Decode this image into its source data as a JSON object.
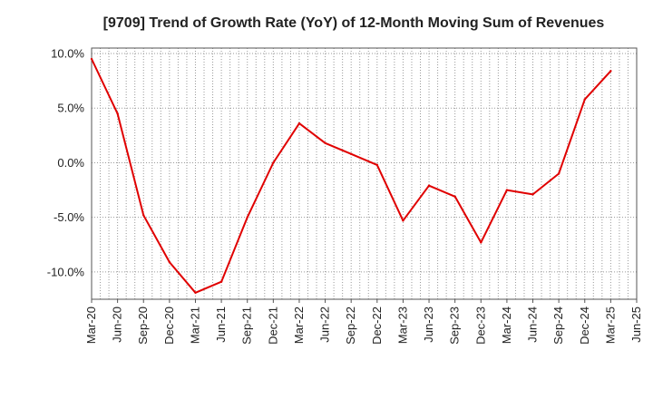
{
  "chart_data": {
    "type": "line",
    "title": "[9709]  Trend of Growth Rate (YoY) of 12-Month Moving Sum of Revenues",
    "xlabel": "",
    "ylabel": "",
    "x_ticks": [
      "Mar-20",
      "Jun-20",
      "Sep-20",
      "Dec-20",
      "Mar-21",
      "Jun-21",
      "Sep-21",
      "Dec-21",
      "Mar-22",
      "Jun-22",
      "Sep-22",
      "Dec-22",
      "Mar-23",
      "Jun-23",
      "Sep-23",
      "Dec-23",
      "Mar-24",
      "Jun-24",
      "Sep-24",
      "Dec-24",
      "Mar-25",
      "Jun-25"
    ],
    "y_ticks": [
      "10.0%",
      "5.0%",
      "0.0%",
      "-5.0%",
      "-10.0%"
    ],
    "y_tick_values": [
      10,
      5,
      0,
      -5,
      -10
    ],
    "ylim": [
      -12.5,
      10.5
    ],
    "grid": true,
    "series": [
      {
        "color": "#e00000",
        "x": [
          "Mar-20",
          "Jun-20",
          "Sep-20",
          "Dec-20",
          "Mar-21",
          "Jun-21",
          "Sep-21",
          "Dec-21",
          "Mar-22",
          "Jun-22",
          "Sep-22",
          "Dec-22",
          "Mar-23",
          "Jun-23",
          "Sep-23",
          "Dec-23",
          "Mar-24",
          "Jun-24",
          "Sep-24",
          "Dec-24",
          "Mar-25"
        ],
        "values": [
          9.5,
          4.5,
          -4.8,
          -9.1,
          -11.9,
          -10.9,
          -5.0,
          0.0,
          3.6,
          1.8,
          0.8,
          -0.2,
          -5.3,
          -2.1,
          -3.1,
          -7.3,
          -2.5,
          -2.9,
          -1.0,
          5.8,
          8.4
        ]
      }
    ]
  }
}
